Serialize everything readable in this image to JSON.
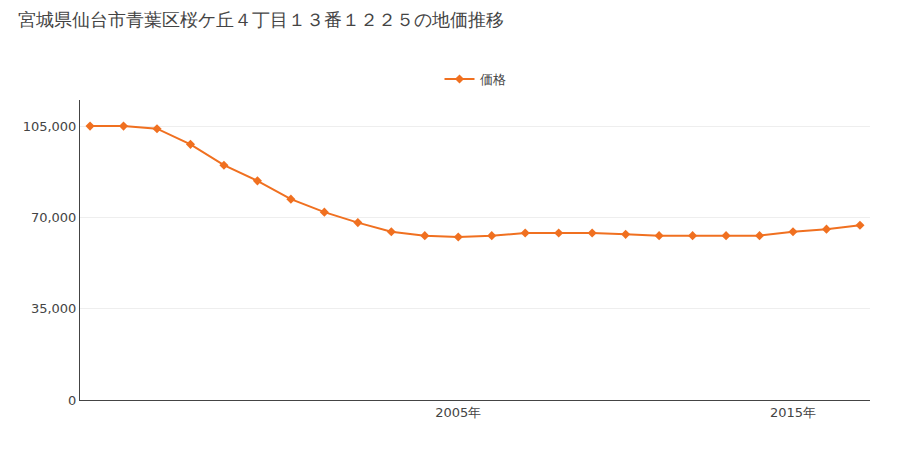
{
  "chart_data": {
    "type": "line",
    "title": "宮城県仙台市青葉区桜ケ丘４丁目１３番１２２５の地価推移",
    "x": [
      1994,
      1995,
      1996,
      1997,
      1998,
      1999,
      2000,
      2001,
      2002,
      2003,
      2004,
      2005,
      2006,
      2007,
      2008,
      2009,
      2010,
      2011,
      2012,
      2013,
      2014,
      2015,
      2016,
      2017
    ],
    "series": [
      {
        "name": "価格",
        "color": "#f07020",
        "marker": "diamond",
        "line_style": "solid",
        "values": [
          105000,
          105000,
          104000,
          98000,
          90000,
          84000,
          77000,
          72000,
          68000,
          64500,
          63000,
          62500,
          63000,
          64000,
          64000,
          64000,
          63500,
          63000,
          63000,
          63000,
          63000,
          64500,
          65500,
          67000
        ]
      }
    ],
    "xlim": [
      1993.7,
      2017.3
    ],
    "xticks": [
      {
        "value": 2005,
        "label": "2005年"
      },
      {
        "value": 2015,
        "label": "2015年"
      }
    ],
    "ylim": [
      0,
      115000
    ],
    "yticks": [
      0,
      {
        "value": 35000,
        "label": "35,000"
      },
      {
        "value": 70000,
        "label": "70,000"
      },
      {
        "value": 105000,
        "label": "105,000"
      }
    ],
    "grid": true,
    "legend": "top"
  }
}
